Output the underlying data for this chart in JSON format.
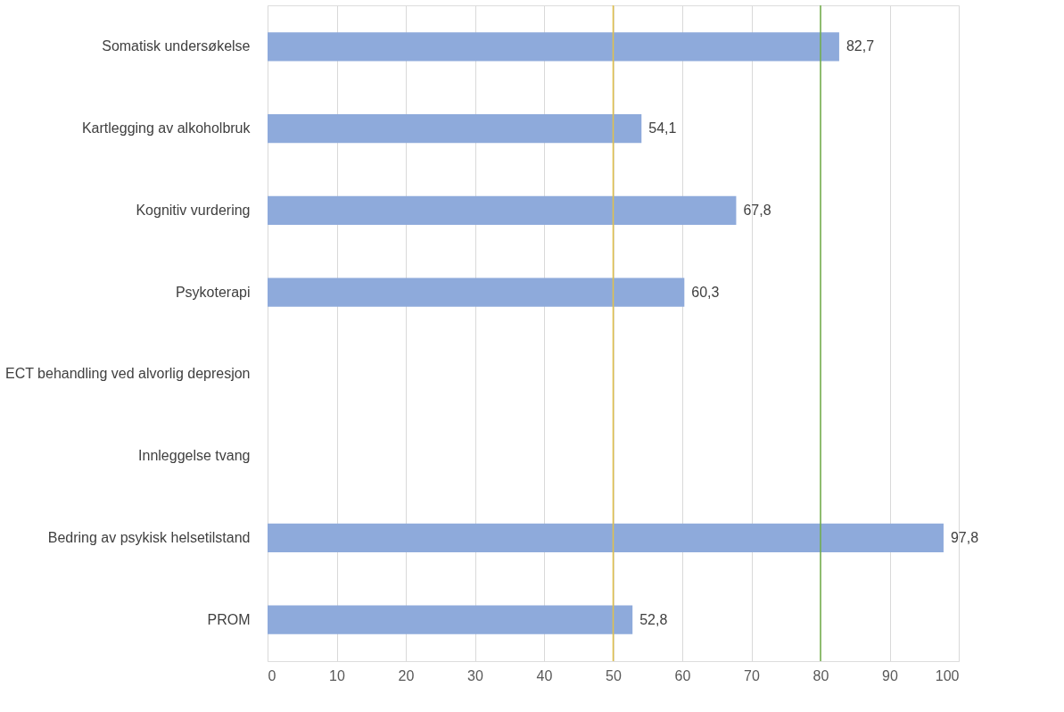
{
  "chart_data": {
    "type": "bar",
    "orientation": "horizontal",
    "categories": [
      "Somatisk undersøkelse",
      "Kartlegging av alkoholbruk",
      "Kognitiv vurdering",
      "Psykoterapi",
      "ECT behandling ved alvorlig depresjon",
      "Innleggelse tvang",
      "Bedring av psykisk helsetilstand",
      "PROM"
    ],
    "values": [
      82.7,
      54.1,
      67.8,
      60.3,
      null,
      null,
      97.8,
      52.8
    ],
    "value_labels": [
      "82,7",
      "54,1",
      "67,8",
      "60,3",
      null,
      null,
      "97,8",
      "52,8"
    ],
    "color": "#8eaadb",
    "xlim": [
      0,
      100
    ],
    "xticks": [
      0,
      10,
      20,
      30,
      40,
      50,
      60,
      70,
      80,
      90,
      100
    ],
    "grid": "x",
    "ref_lines": [
      {
        "axis": "x",
        "value": 50,
        "color": "#e2c14a"
      },
      {
        "axis": "x",
        "value": 80,
        "color": "#70ad47"
      }
    ]
  }
}
